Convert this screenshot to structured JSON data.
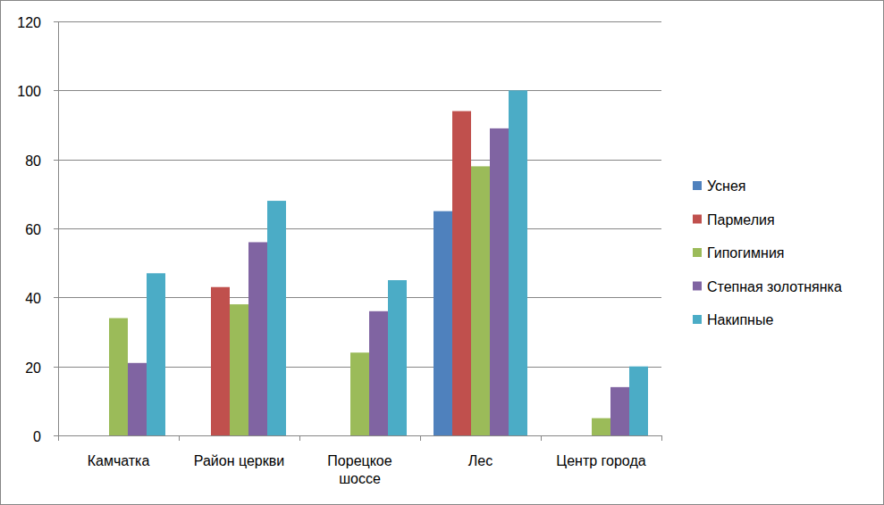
{
  "chart_data": {
    "type": "bar",
    "categories": [
      "Камчатка",
      "Район церкви",
      "Порецкое шоссе",
      "Лес",
      "Центр города"
    ],
    "series": [
      {
        "name": "Уснея",
        "color": "#4f81bd",
        "values": [
          null,
          null,
          null,
          65,
          null
        ]
      },
      {
        "name": "Пармелия",
        "color": "#c0504d",
        "values": [
          null,
          43,
          null,
          94,
          null
        ]
      },
      {
        "name": "Гипогимния",
        "color": "#9bbb59",
        "values": [
          34,
          38,
          24,
          78,
          5
        ]
      },
      {
        "name": "Степная золотнянка",
        "color": "#8064a2",
        "values": [
          21,
          56,
          36,
          89,
          14
        ]
      },
      {
        "name": "Накипные",
        "color": "#4bacc6",
        "values": [
          47,
          68,
          45,
          100,
          20
        ]
      }
    ],
    "ylim": [
      0,
      120
    ],
    "yticks": [
      0,
      20,
      40,
      60,
      80,
      100,
      120
    ],
    "grid": true,
    "legend": "right"
  }
}
